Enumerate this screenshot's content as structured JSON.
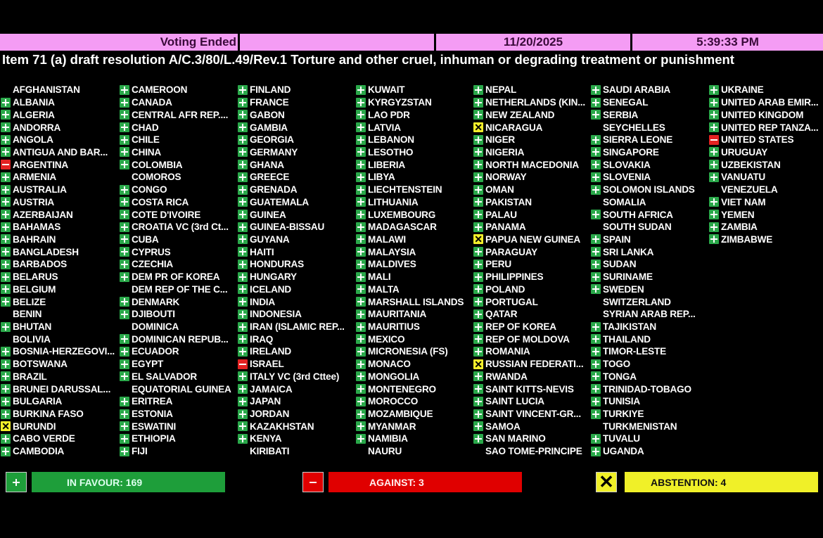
{
  "header": {
    "status": "Voting Ended",
    "blank": "",
    "date": "11/20/2025",
    "time": "5:39:33 PM"
  },
  "title": "Item 71 (a) draft resolution A/C.3/80/L.49/Rev.1 Torture and other cruel, inhuman or degrading treatment or punishment",
  "colors": {
    "header": "#f49cf4",
    "yes": "#1e9e3a",
    "no": "#e00000",
    "abstain": "#f0f028"
  },
  "vote_icons": {
    "Y": "plus-icon",
    "N": "minus-icon",
    "A": "x-icon"
  },
  "columns": [
    [
      [
        "AFGHANISTAN",
        ""
      ],
      [
        "ALBANIA",
        "Y"
      ],
      [
        "ALGERIA",
        "Y"
      ],
      [
        "ANDORRA",
        "Y"
      ],
      [
        "ANGOLA",
        "Y"
      ],
      [
        "ANTIGUA AND BAR...",
        "Y"
      ],
      [
        "ARGENTINA",
        "N"
      ],
      [
        "ARMENIA",
        "Y"
      ],
      [
        "AUSTRALIA",
        "Y"
      ],
      [
        "AUSTRIA",
        "Y"
      ],
      [
        "AZERBAIJAN",
        "Y"
      ],
      [
        "BAHAMAS",
        "Y"
      ],
      [
        "BAHRAIN",
        "Y"
      ],
      [
        "BANGLADESH",
        "Y"
      ],
      [
        "BARBADOS",
        "Y"
      ],
      [
        "BELARUS",
        "Y"
      ],
      [
        "BELGIUM",
        "Y"
      ],
      [
        "BELIZE",
        "Y"
      ],
      [
        "BENIN",
        ""
      ],
      [
        "BHUTAN",
        "Y"
      ],
      [
        "BOLIVIA",
        ""
      ],
      [
        "BOSNIA-HERZEGOVI...",
        "Y"
      ],
      [
        "BOTSWANA",
        "Y"
      ],
      [
        "BRAZIL",
        "Y"
      ],
      [
        "BRUNEI DARUSSAL...",
        "Y"
      ],
      [
        "BULGARIA",
        "Y"
      ],
      [
        "BURKINA FASO",
        "Y"
      ],
      [
        "BURUNDI",
        "A"
      ],
      [
        "CABO VERDE",
        "Y"
      ],
      [
        "CAMBODIA",
        "Y"
      ]
    ],
    [
      [
        "CAMEROON",
        "Y"
      ],
      [
        "CANADA",
        "Y"
      ],
      [
        "CENTRAL AFR REP....",
        "Y"
      ],
      [
        "CHAD",
        "Y"
      ],
      [
        "CHILE",
        "Y"
      ],
      [
        "CHINA",
        "Y"
      ],
      [
        "COLOMBIA",
        "Y"
      ],
      [
        "COMOROS",
        ""
      ],
      [
        "CONGO",
        "Y"
      ],
      [
        "COSTA RICA",
        "Y"
      ],
      [
        "COTE D'IVOIRE",
        "Y"
      ],
      [
        "CROATIA VC (3rd Ct...",
        "Y"
      ],
      [
        "CUBA",
        "Y"
      ],
      [
        "CYPRUS",
        "Y"
      ],
      [
        "CZECHIA",
        "Y"
      ],
      [
        "DEM PR OF KOREA",
        "Y"
      ],
      [
        "DEM REP OF THE C...",
        ""
      ],
      [
        "DENMARK",
        "Y"
      ],
      [
        "DJIBOUTI",
        "Y"
      ],
      [
        "DOMINICA",
        ""
      ],
      [
        "DOMINICAN REPUB...",
        "Y"
      ],
      [
        "ECUADOR",
        "Y"
      ],
      [
        "EGYPT",
        "Y"
      ],
      [
        "EL SALVADOR",
        "Y"
      ],
      [
        "EQUATORIAL GUINEA",
        ""
      ],
      [
        "ERITREA",
        "Y"
      ],
      [
        "ESTONIA",
        "Y"
      ],
      [
        "ESWATINI",
        "Y"
      ],
      [
        "ETHIOPIA",
        "Y"
      ],
      [
        "FIJI",
        "Y"
      ]
    ],
    [
      [
        "FINLAND",
        "Y"
      ],
      [
        "FRANCE",
        "Y"
      ],
      [
        "GABON",
        "Y"
      ],
      [
        "GAMBIA",
        "Y"
      ],
      [
        "GEORGIA",
        "Y"
      ],
      [
        "GERMANY",
        "Y"
      ],
      [
        "GHANA",
        "Y"
      ],
      [
        "GREECE",
        "Y"
      ],
      [
        "GRENADA",
        "Y"
      ],
      [
        "GUATEMALA",
        "Y"
      ],
      [
        "GUINEA",
        "Y"
      ],
      [
        "GUINEA-BISSAU",
        "Y"
      ],
      [
        "GUYANA",
        "Y"
      ],
      [
        "HAITI",
        "Y"
      ],
      [
        "HONDURAS",
        "Y"
      ],
      [
        "HUNGARY",
        "Y"
      ],
      [
        "ICELAND",
        "Y"
      ],
      [
        "INDIA",
        "Y"
      ],
      [
        "INDONESIA",
        "Y"
      ],
      [
        "IRAN (ISLAMIC REP...",
        "Y"
      ],
      [
        "IRAQ",
        "Y"
      ],
      [
        "IRELAND",
        "Y"
      ],
      [
        "ISRAEL",
        "N"
      ],
      [
        "ITALY VC (3rd Cttee)",
        "Y"
      ],
      [
        "JAMAICA",
        "Y"
      ],
      [
        "JAPAN",
        "Y"
      ],
      [
        "JORDAN",
        "Y"
      ],
      [
        "KAZAKHSTAN",
        "Y"
      ],
      [
        "KENYA",
        "Y"
      ],
      [
        "KIRIBATI",
        ""
      ]
    ],
    [
      [
        "KUWAIT",
        "Y"
      ],
      [
        "KYRGYZSTAN",
        "Y"
      ],
      [
        "LAO PDR",
        "Y"
      ],
      [
        "LATVIA",
        "Y"
      ],
      [
        "LEBANON",
        "Y"
      ],
      [
        "LESOTHO",
        "Y"
      ],
      [
        "LIBERIA",
        "Y"
      ],
      [
        "LIBYA",
        "Y"
      ],
      [
        "LIECHTENSTEIN",
        "Y"
      ],
      [
        "LITHUANIA",
        "Y"
      ],
      [
        "LUXEMBOURG",
        "Y"
      ],
      [
        "MADAGASCAR",
        "Y"
      ],
      [
        "MALAWI",
        "Y"
      ],
      [
        "MALAYSIA",
        "Y"
      ],
      [
        "MALDIVES",
        "Y"
      ],
      [
        "MALI",
        "Y"
      ],
      [
        "MALTA",
        "Y"
      ],
      [
        "MARSHALL ISLANDS",
        "Y"
      ],
      [
        "MAURITANIA",
        "Y"
      ],
      [
        "MAURITIUS",
        "Y"
      ],
      [
        "MEXICO",
        "Y"
      ],
      [
        "MICRONESIA (FS)",
        "Y"
      ],
      [
        "MONACO",
        "Y"
      ],
      [
        "MONGOLIA",
        "Y"
      ],
      [
        "MONTENEGRO",
        "Y"
      ],
      [
        "MOROCCO",
        "Y"
      ],
      [
        "MOZAMBIQUE",
        "Y"
      ],
      [
        "MYANMAR",
        "Y"
      ],
      [
        "NAMIBIA",
        "Y"
      ],
      [
        "NAURU",
        ""
      ]
    ],
    [
      [
        "NEPAL",
        "Y"
      ],
      [
        "NETHERLANDS (KIN...",
        "Y"
      ],
      [
        "NEW ZEALAND",
        "Y"
      ],
      [
        "NICARAGUA",
        "A"
      ],
      [
        "NIGER",
        "Y"
      ],
      [
        "NIGERIA",
        "Y"
      ],
      [
        "NORTH MACEDONIA",
        "Y"
      ],
      [
        "NORWAY",
        "Y"
      ],
      [
        "OMAN",
        "Y"
      ],
      [
        "PAKISTAN",
        "Y"
      ],
      [
        "PALAU",
        "Y"
      ],
      [
        "PANAMA",
        "Y"
      ],
      [
        "PAPUA NEW GUINEA",
        "A"
      ],
      [
        "PARAGUAY",
        "Y"
      ],
      [
        "PERU",
        "Y"
      ],
      [
        "PHILIPPINES",
        "Y"
      ],
      [
        "POLAND",
        "Y"
      ],
      [
        "PORTUGAL",
        "Y"
      ],
      [
        "QATAR",
        "Y"
      ],
      [
        "REP OF KOREA",
        "Y"
      ],
      [
        "REP OF MOLDOVA",
        "Y"
      ],
      [
        "ROMANIA",
        "Y"
      ],
      [
        "RUSSIAN FEDERATI...",
        "A"
      ],
      [
        "RWANDA",
        "Y"
      ],
      [
        "SAINT KITTS-NEVIS",
        "Y"
      ],
      [
        "SAINT LUCIA",
        "Y"
      ],
      [
        "SAINT VINCENT-GR...",
        "Y"
      ],
      [
        "SAMOA",
        "Y"
      ],
      [
        "SAN MARINO",
        "Y"
      ],
      [
        "SAO TOME-PRINCIPE",
        ""
      ]
    ],
    [
      [
        "SAUDI ARABIA",
        "Y"
      ],
      [
        "SENEGAL",
        "Y"
      ],
      [
        "SERBIA",
        "Y"
      ],
      [
        "SEYCHELLES",
        ""
      ],
      [
        "SIERRA LEONE",
        "Y"
      ],
      [
        "SINGAPORE",
        "Y"
      ],
      [
        "SLOVAKIA",
        "Y"
      ],
      [
        "SLOVENIA",
        "Y"
      ],
      [
        "SOLOMON ISLANDS",
        "Y"
      ],
      [
        "SOMALIA",
        ""
      ],
      [
        "SOUTH AFRICA",
        "Y"
      ],
      [
        "SOUTH SUDAN",
        ""
      ],
      [
        "SPAIN",
        "Y"
      ],
      [
        "SRI LANKA",
        "Y"
      ],
      [
        "SUDAN",
        "Y"
      ],
      [
        "SURINAME",
        "Y"
      ],
      [
        "SWEDEN",
        "Y"
      ],
      [
        "SWITZERLAND",
        ""
      ],
      [
        "SYRIAN ARAB REP...",
        ""
      ],
      [
        "TAJIKISTAN",
        "Y"
      ],
      [
        "THAILAND",
        "Y"
      ],
      [
        "TIMOR-LESTE",
        "Y"
      ],
      [
        "TOGO",
        "Y"
      ],
      [
        "TONGA",
        "Y"
      ],
      [
        "TRINIDAD-TOBAGO",
        "Y"
      ],
      [
        "TUNISIA",
        "Y"
      ],
      [
        "TURKIYE",
        "Y"
      ],
      [
        "TURKMENISTAN",
        ""
      ],
      [
        "TUVALU",
        "Y"
      ],
      [
        "UGANDA",
        "Y"
      ]
    ],
    [
      [
        "UKRAINE",
        "Y"
      ],
      [
        "UNITED ARAB EMIR...",
        "Y"
      ],
      [
        "UNITED KINGDOM",
        "Y"
      ],
      [
        "UNITED REP TANZA...",
        "Y"
      ],
      [
        "UNITED STATES",
        "N"
      ],
      [
        "URUGUAY",
        "Y"
      ],
      [
        "UZBEKISTAN",
        "Y"
      ],
      [
        "VANUATU",
        "Y"
      ],
      [
        "VENEZUELA",
        ""
      ],
      [
        "VIET NAM",
        "Y"
      ],
      [
        "YEMEN",
        "Y"
      ],
      [
        "ZAMBIA",
        "Y"
      ],
      [
        "ZIMBABWE",
        "Y"
      ]
    ]
  ],
  "totals": {
    "favour": "IN FAVOUR: 169",
    "against": "AGAINST: 3",
    "abstention": "ABSTENTION: 4"
  }
}
